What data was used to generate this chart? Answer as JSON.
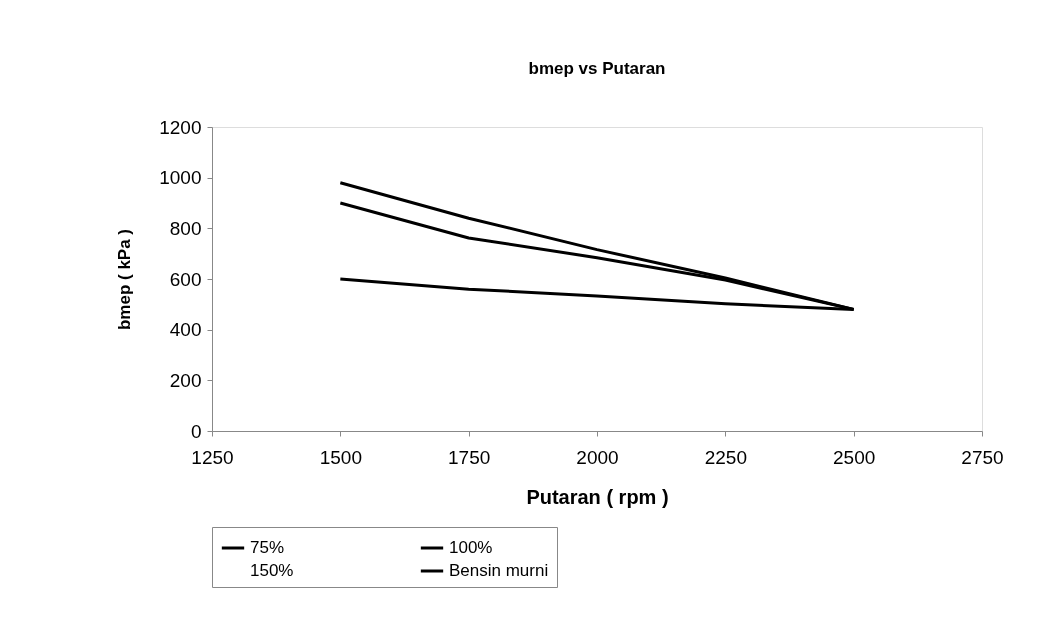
{
  "chart_data": {
    "type": "line",
    "title": "bmep vs Putaran",
    "xlabel": "Putaran ( rpm )",
    "ylabel": "bmep ( kPa )",
    "x": [
      1500,
      1750,
      2000,
      2250,
      2500
    ],
    "xlim": [
      1250,
      2750
    ],
    "xticks": [
      1250,
      1500,
      1750,
      2000,
      2250,
      2500,
      2750
    ],
    "ylim": [
      0,
      1200
    ],
    "yticks": [
      0,
      200,
      400,
      600,
      800,
      1000,
      1200
    ],
    "series": [
      {
        "name": "75%",
        "color": "#000000",
        "values": [
          980,
          840,
          716,
          604,
          480
        ]
      },
      {
        "name": "100%",
        "color": "#000000",
        "values": [
          900,
          762,
          684,
          596,
          480
        ]
      },
      {
        "name": "150%",
        "color": null,
        "values": [
          null,
          null,
          null,
          null,
          null
        ]
      },
      {
        "name": "Bensin murni",
        "color": "#000000",
        "values": [
          600,
          560,
          533,
          502,
          480
        ]
      }
    ],
    "legend": "bottom",
    "grid": false,
    "marker": "none",
    "line_style": "solid"
  }
}
